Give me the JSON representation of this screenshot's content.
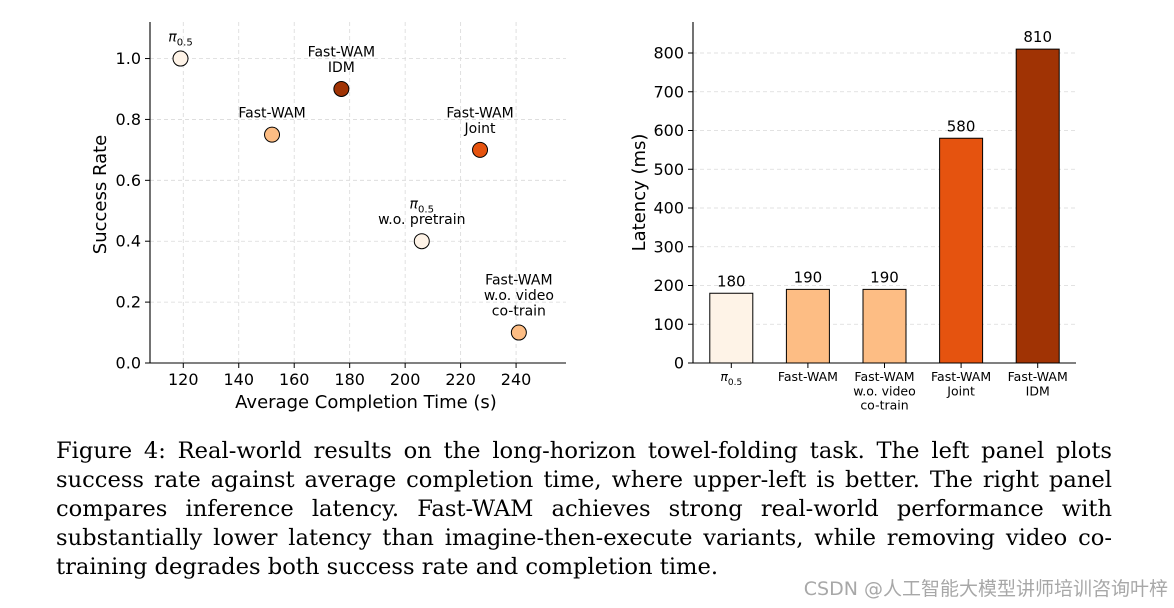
{
  "chart_data": [
    {
      "type": "scatter",
      "xlabel": "Average Completion Time (s)",
      "ylabel": "Success Rate",
      "xlim": [
        108,
        258
      ],
      "ylim": [
        0.0,
        1.12
      ],
      "xticks": [
        120,
        140,
        160,
        180,
        200,
        220,
        240
      ],
      "yticks": [
        0.0,
        0.2,
        0.4,
        0.6,
        0.8,
        1.0
      ],
      "grid": "dashed",
      "points": [
        {
          "label": [
            "π0.5"
          ],
          "x": 119,
          "y": 1.0,
          "color": "#fef3e7"
        },
        {
          "label": [
            "Fast-WAM"
          ],
          "x": 152,
          "y": 0.75,
          "color": "#fdbd84"
        },
        {
          "label": [
            "Fast-WAM",
            "IDM"
          ],
          "x": 177,
          "y": 0.9,
          "color": "#a03304"
        },
        {
          "label": [
            "π0.5",
            "w.o. pretrain"
          ],
          "x": 206,
          "y": 0.4,
          "color": "#fef3e7"
        },
        {
          "label": [
            "Fast-WAM",
            "Joint"
          ],
          "x": 227,
          "y": 0.7,
          "color": "#e5530f"
        },
        {
          "label": [
            "Fast-WAM",
            "w.o. video",
            "co-train"
          ],
          "x": 241,
          "y": 0.1,
          "color": "#fdbd84"
        }
      ]
    },
    {
      "type": "bar",
      "ylabel": "Latency (ms)",
      "ylim": [
        0,
        880
      ],
      "yticks": [
        0,
        100,
        200,
        300,
        400,
        500,
        600,
        700,
        800
      ],
      "grid": "dashed-horizontal",
      "categories": [
        [
          "π0.5"
        ],
        [
          "Fast-WAM"
        ],
        [
          "Fast-WAM",
          "w.o. video",
          "co-train"
        ],
        [
          "Fast-WAM",
          "Joint"
        ],
        [
          "Fast-WAM",
          "IDM"
        ]
      ],
      "values": [
        180,
        190,
        190,
        580,
        810
      ],
      "colors": [
        "#fef3e7",
        "#fdbd84",
        "#fdbd84",
        "#e5530f",
        "#a03304"
      ]
    }
  ],
  "caption": "Figure 4: Real-world results on the long-horizon towel-folding task. The left panel plots success rate against average completion time, where upper-left is better. The right panel compares inference latency. Fast-WAM achieves strong real-world performance with substantially lower latency than imagine-then-execute variants, while removing video co-training degrades both success rate and completion time.",
  "watermark": "CSDN @人工智能大模型讲师培训咨询叶梓"
}
